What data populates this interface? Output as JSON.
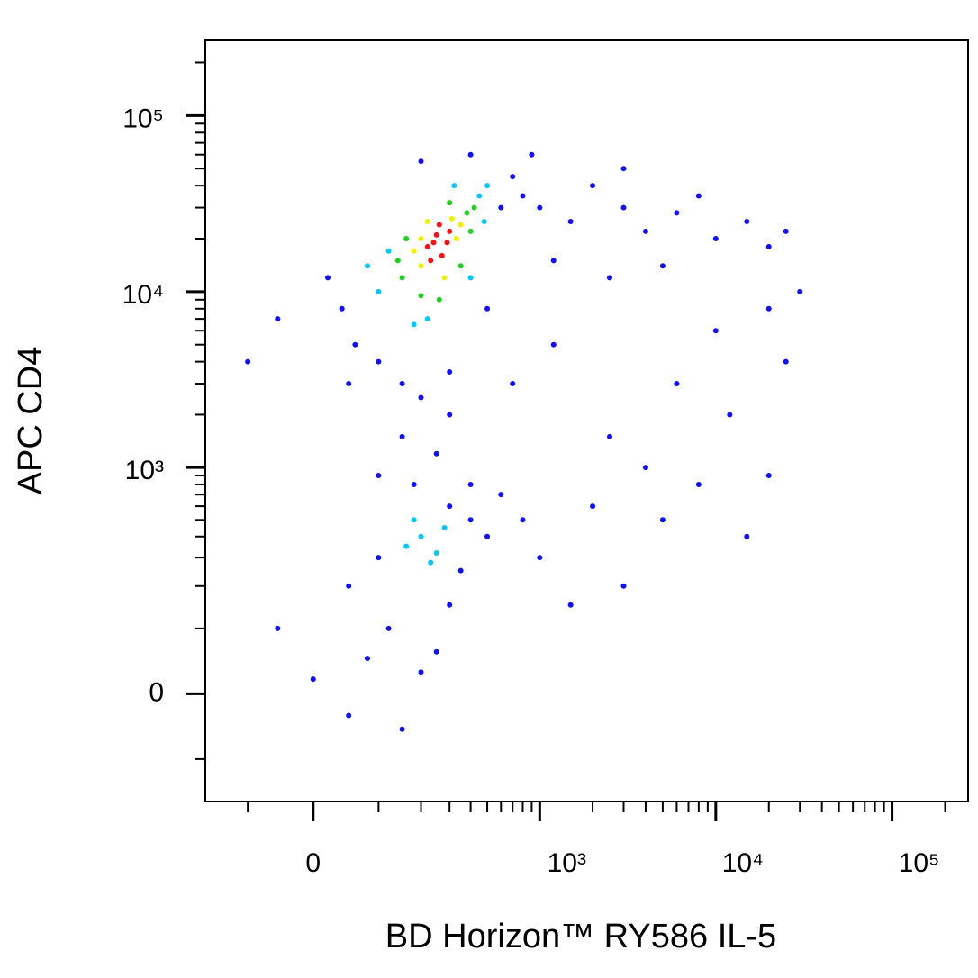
{
  "chart_data": {
    "type": "scatter",
    "xlabel": "BD Horizon™ RY586 IL-5",
    "ylabel": "APC CD4",
    "scale": "logicle",
    "xlim": [
      -200,
      270000
    ],
    "ylim": [
      -200,
      270000
    ],
    "xticks": [
      {
        "value": 0,
        "label": "0"
      },
      {
        "value": 1000,
        "label": "10³"
      },
      {
        "value": 10000,
        "label": "10⁴"
      },
      {
        "value": 100000,
        "label": "10⁵"
      }
    ],
    "yticks": [
      {
        "value": 0,
        "label": "0"
      },
      {
        "value": 1000,
        "label": "10³"
      },
      {
        "value": 10000,
        "label": "10⁴"
      },
      {
        "value": 100000,
        "label": "10⁵"
      }
    ],
    "xminorticks": [
      -100,
      100,
      200,
      300,
      400,
      500,
      600,
      700,
      800,
      900,
      2000,
      3000,
      4000,
      5000,
      6000,
      7000,
      8000,
      9000,
      20000,
      30000,
      40000,
      50000,
      60000,
      70000,
      80000,
      90000,
      200000
    ],
    "yminorticks": [
      -100,
      100,
      200,
      300,
      400,
      500,
      600,
      700,
      800,
      900,
      2000,
      3000,
      4000,
      5000,
      6000,
      7000,
      8000,
      9000,
      20000,
      30000,
      40000,
      50000,
      60000,
      70000,
      80000,
      90000,
      200000
    ],
    "series": [
      {
        "color": "#1010ff",
        "x": [
          40,
          20,
          60,
          100,
          150,
          200,
          300,
          500,
          600,
          700,
          800,
          1000,
          1500,
          2000,
          3000,
          4000,
          6000,
          8000,
          10000,
          15000,
          20000,
          25000,
          1200,
          2500,
          5000,
          3000,
          900,
          400,
          200,
          -50,
          -100,
          50,
          150,
          250,
          300,
          100,
          180,
          100,
          50,
          300,
          400,
          350,
          120,
          80,
          200,
          150,
          50,
          250,
          300,
          -50,
          0,
          400,
          500,
          600,
          800,
          1000,
          2000,
          3000,
          5000,
          8000,
          15000,
          20000,
          1500,
          2500,
          4000,
          12000,
          6000,
          700,
          1200,
          20000,
          30000,
          10000,
          25000
        ],
        "y": [
          8000,
          12000,
          5000,
          4000,
          3000,
          2500,
          3500,
          8000,
          30000,
          45000,
          35000,
          30000,
          25000,
          40000,
          30000,
          22000,
          28000,
          35000,
          20000,
          25000,
          18000,
          22000,
          15000,
          12000,
          14000,
          50000,
          60000,
          60000,
          55000,
          7000,
          4000,
          3000,
          1500,
          1200,
          2000,
          900,
          800,
          300,
          200,
          600,
          500,
          250,
          100,
          50,
          30,
          -50,
          -30,
          60,
          150,
          100,
          20,
          800,
          400,
          700,
          500,
          300,
          600,
          200,
          500,
          800,
          400,
          900,
          150,
          1500,
          1000,
          2000,
          3000,
          3000,
          5000,
          8000,
          10000,
          6000,
          4000
        ]
      },
      {
        "color": "#00c8ff",
        "x": [
          100,
          450,
          120,
          480,
          220,
          320,
          80,
          500,
          180,
          400,
          200,
          250,
          180,
          230,
          280,
          160
        ],
        "y": [
          10000,
          35000,
          17000,
          25000,
          7000,
          40000,
          14000,
          40000,
          6500,
          12000,
          400,
          320,
          500,
          280,
          450,
          350
        ]
      },
      {
        "color": "#20d020",
        "x": [
          150,
          380,
          160,
          400,
          260,
          300,
          140,
          420,
          200,
          350
        ],
        "y": [
          12000,
          28000,
          20000,
          22000,
          9000,
          32000,
          15000,
          30000,
          9500,
          14000
        ]
      },
      {
        "color": "#f0f000",
        "x": [
          200,
          310,
          180,
          330,
          280,
          220,
          350,
          200
        ],
        "y": [
          14000,
          26000,
          17000,
          20000,
          12000,
          25000,
          24000,
          20000
        ]
      },
      {
        "color": "#ff1010",
        "x": [
          220,
          250,
          270,
          290,
          230,
          260,
          300,
          240
        ],
        "y": [
          18000,
          21000,
          16000,
          19000,
          15000,
          24000,
          22000,
          19000
        ]
      }
    ]
  }
}
